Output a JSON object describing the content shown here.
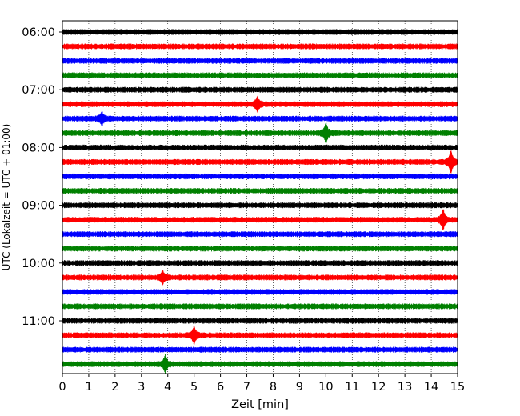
{
  "chart_data": {
    "type": "line",
    "xlabel": "Zeit  [min]",
    "ylabel": "UTC (Lokalzeit = UTC + 01:00)",
    "xlim": [
      0,
      15
    ],
    "x_ticks": [
      "0",
      "1",
      "2",
      "3",
      "4",
      "5",
      "6",
      "7",
      "8",
      "9",
      "10",
      "11",
      "12",
      "13",
      "14",
      "15"
    ],
    "y_ticks": [
      {
        "row": 0,
        "label": "06:00"
      },
      {
        "row": 4,
        "label": "07:00"
      },
      {
        "row": 8,
        "label": "08:00"
      },
      {
        "row": 12,
        "label": "09:00"
      },
      {
        "row": 16,
        "label": "10:00"
      },
      {
        "row": 20,
        "label": "11:00"
      }
    ],
    "grid": "vertical dotted at each minute",
    "trace_colors": [
      "#000000",
      "#ff0000",
      "#0000ff",
      "#008000"
    ],
    "traces": [
      {
        "start": "06:00",
        "events": []
      },
      {
        "start": "06:15",
        "events": []
      },
      {
        "start": "06:30",
        "events": []
      },
      {
        "start": "06:45",
        "events": []
      },
      {
        "start": "07:00",
        "events": []
      },
      {
        "start": "07:15",
        "events": [
          {
            "t": 7.4,
            "amp": 0.8
          }
        ]
      },
      {
        "start": "07:30",
        "events": [
          {
            "t": 1.5,
            "amp": 0.7
          }
        ]
      },
      {
        "start": "07:45",
        "events": [
          {
            "t": 10.0,
            "amp": 1.1
          }
        ]
      },
      {
        "start": "08:00",
        "events": []
      },
      {
        "start": "08:15",
        "events": [
          {
            "t": 14.75,
            "amp": 1.2
          }
        ]
      },
      {
        "start": "08:30",
        "events": []
      },
      {
        "start": "08:45",
        "events": []
      },
      {
        "start": "09:00",
        "events": []
      },
      {
        "start": "09:15",
        "events": [
          {
            "t": 14.45,
            "amp": 1.2
          }
        ]
      },
      {
        "start": "09:30",
        "events": []
      },
      {
        "start": "09:45",
        "events": []
      },
      {
        "start": "10:00",
        "events": []
      },
      {
        "start": "10:15",
        "events": [
          {
            "t": 3.8,
            "amp": 0.7
          }
        ]
      },
      {
        "start": "10:30",
        "events": []
      },
      {
        "start": "10:45",
        "events": []
      },
      {
        "start": "11:00",
        "events": []
      },
      {
        "start": "11:15",
        "events": [
          {
            "t": 5.0,
            "amp": 1.0
          }
        ]
      },
      {
        "start": "11:30",
        "events": []
      },
      {
        "start": "11:45",
        "events": [
          {
            "t": 3.9,
            "amp": 0.9
          }
        ]
      }
    ]
  }
}
